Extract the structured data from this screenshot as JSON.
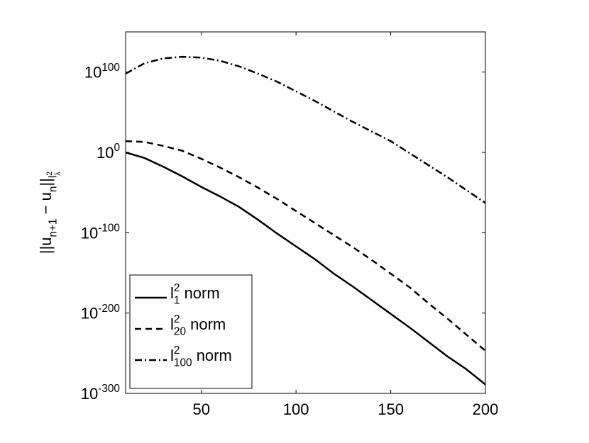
{
  "chart_data": {
    "type": "line",
    "ylabel": "||u_{n+1} − u_{n}||_{l^{2}_{λ}}",
    "x": [
      10,
      20,
      30,
      40,
      50,
      60,
      70,
      80,
      90,
      100,
      110,
      120,
      130,
      140,
      150,
      160,
      170,
      180,
      190,
      200
    ],
    "series": [
      {
        "name": "l^{2}_{1} norm",
        "color": "#000000",
        "dash": "solid",
        "values": [
          1,
          1e-07,
          1e-18,
          1e-30,
          1e-43,
          1e-55,
          1e-68,
          1e-84,
          1e-101,
          1e-117,
          1e-133,
          1e-151,
          1e-167,
          1e-184,
          1e-201,
          1e-218,
          1e-236,
          1e-254,
          1e-270,
          1e-289
        ]
      },
      {
        "name": "l^{2}_{20} norm",
        "color": "#000000",
        "dash": "dashed",
        "values": [
          100000000000000.0,
          10000000000000.0,
          100000000.0,
          100.0,
          1e-08,
          1e-19,
          1e-31,
          1e-44,
          1e-58,
          1e-73,
          1e-88,
          1e-103,
          1e-118,
          1e-134,
          1e-151,
          1e-168,
          1e-188,
          1e-207,
          1e-227,
          1e-247
        ]
      },
      {
        "name": "l^{2}_{100} norm",
        "color": "#000000",
        "dash": "dashdot",
        "values": [
          1e+98,
          1e+111,
          1e+117,
          1e+119,
          1e+118,
          1e+114,
          1e+107,
          1e+98,
          1e+88,
          1e+76,
          1e+64,
          1e+51,
          1e+38,
          1e+26,
          100000000000000.0,
          0.1,
          1e-16,
          1e-31,
          1e-47,
          1e-63
        ]
      }
    ],
    "xlim": [
      10,
      200
    ],
    "xticks": [
      50,
      100,
      150,
      200
    ],
    "ylim": [
      1e-300,
      1e+150
    ],
    "yticks": [
      {
        "value": 1e-300,
        "label": "10^{-300}"
      },
      {
        "value": 1e-200,
        "label": "10^{-200}"
      },
      {
        "value": 1e-100,
        "label": "10^{-100}"
      },
      {
        "value": 1,
        "label": "10^{0}"
      },
      {
        "value": 1e+100,
        "label": "10^{100}"
      }
    ],
    "yscale": "log",
    "grid": false,
    "legend": "lower left"
  }
}
